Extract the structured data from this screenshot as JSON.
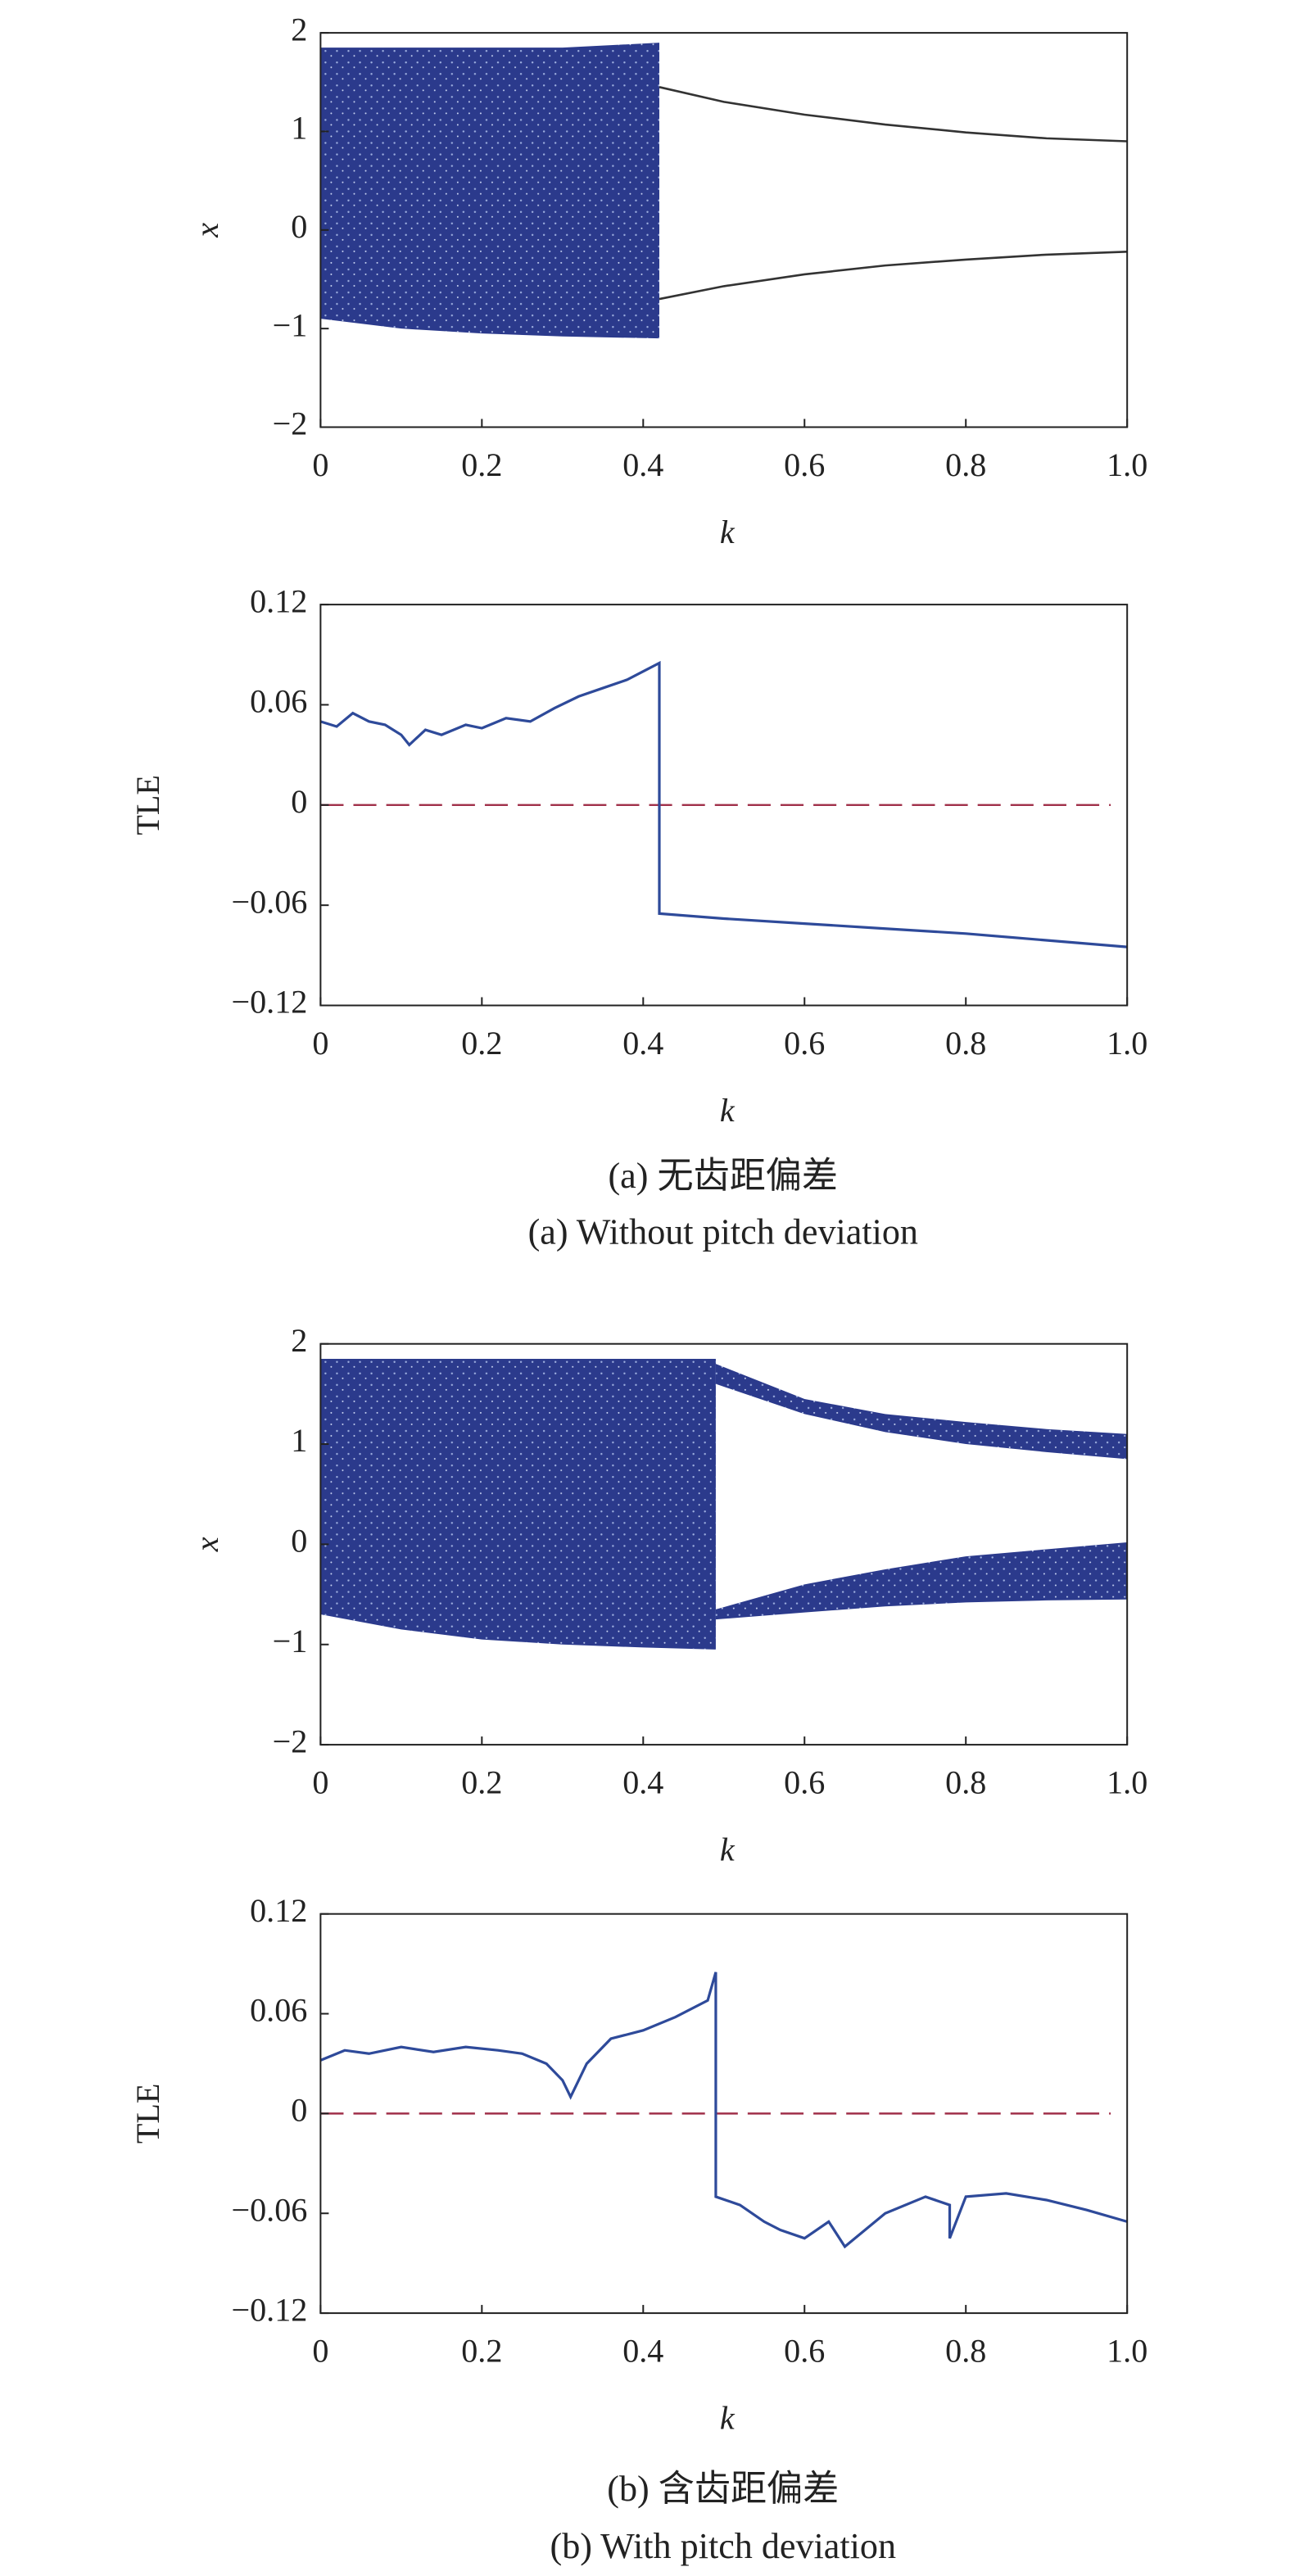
{
  "chart_data": [
    {
      "type": "bifurcation",
      "xlabel": "k",
      "ylabel": "x",
      "xlim": [
        0,
        1
      ],
      "ylim": [
        -2,
        2
      ],
      "xticks": [
        0,
        0.2,
        0.4,
        0.6,
        0.8,
        {
          "value": 1,
          "label": "1.0"
        }
      ],
      "yticks": [
        {
          "value": -2,
          "label": "−2"
        },
        {
          "value": -1,
          "label": "−1"
        },
        0,
        1,
        2
      ],
      "bands": [
        {
          "color": "#2b3a8c",
          "x": [
            0,
            0.1,
            0.2,
            0.3,
            0.42
          ],
          "upper": [
            1.85,
            1.85,
            1.85,
            1.85,
            1.9
          ],
          "lower": [
            -0.9,
            -1.0,
            -1.05,
            -1.08,
            -1.1
          ]
        }
      ],
      "branches": [
        {
          "color": "#333333",
          "x": [
            0.42,
            0.5,
            0.6,
            0.7,
            0.8,
            0.9,
            1
          ],
          "values": [
            1.45,
            1.3,
            1.17,
            1.07,
            0.99,
            0.93,
            0.9
          ]
        },
        {
          "color": "#333333",
          "x": [
            0.42,
            0.5,
            0.6,
            0.7,
            0.8,
            0.9,
            1
          ],
          "values": [
            -0.7,
            -0.57,
            -0.45,
            -0.36,
            -0.3,
            -0.25,
            -0.22
          ]
        }
      ]
    },
    {
      "type": "line",
      "xlabel": "k",
      "ylabel": "TLE",
      "xlim": [
        0,
        1
      ],
      "ylim": [
        -0.12,
        0.12
      ],
      "xticks": [
        0,
        0.2,
        0.4,
        0.6,
        0.8,
        {
          "value": 1,
          "label": "1.0"
        }
      ],
      "yticks": [
        {
          "value": -0.12,
          "label": "−0.12"
        },
        {
          "value": -0.06,
          "label": "−0.06"
        },
        0,
        0.06,
        0.12
      ],
      "ref_line": 0,
      "ref_color": "#a0304a",
      "series": [
        {
          "color": "#2e4a9a",
          "x": [
            0,
            0.02,
            0.04,
            0.06,
            0.08,
            0.1,
            0.11,
            0.13,
            0.15,
            0.18,
            0.2,
            0.23,
            0.26,
            0.29,
            0.32,
            0.35,
            0.38,
            0.4,
            0.42,
            0.42,
            0.5,
            0.6,
            0.7,
            0.8,
            0.9,
            1
          ],
          "values": [
            0.05,
            0.047,
            0.055,
            0.05,
            0.048,
            0.042,
            0.036,
            0.045,
            0.042,
            0.048,
            0.046,
            0.052,
            0.05,
            0.058,
            0.065,
            0.07,
            0.075,
            0.08,
            0.085,
            -0.065,
            -0.068,
            -0.071,
            -0.074,
            -0.077,
            -0.081,
            -0.085
          ]
        }
      ]
    },
    {
      "type": "bifurcation",
      "xlabel": "k",
      "ylabel": "x",
      "xlim": [
        0,
        1
      ],
      "ylim": [
        -2,
        2
      ],
      "xticks": [
        0,
        0.2,
        0.4,
        0.6,
        0.8,
        {
          "value": 1,
          "label": "1.0"
        }
      ],
      "yticks": [
        {
          "value": -2,
          "label": "−2"
        },
        {
          "value": -1,
          "label": "−1"
        },
        0,
        1,
        2
      ],
      "bands": [
        {
          "color": "#2b3a8c",
          "x": [
            0,
            0.1,
            0.2,
            0.3,
            0.4,
            0.49
          ],
          "upper": [
            1.85,
            1.85,
            1.85,
            1.85,
            1.85,
            1.85
          ],
          "lower": [
            -0.7,
            -0.85,
            -0.95,
            -1.0,
            -1.03,
            -1.05
          ]
        },
        {
          "color": "#2b3a8c",
          "x": [
            0.49,
            0.6,
            0.7,
            0.8,
            0.9,
            1
          ],
          "upper": [
            1.8,
            1.45,
            1.3,
            1.22,
            1.15,
            1.1
          ],
          "lower": [
            1.6,
            1.3,
            1.12,
            1.0,
            0.92,
            0.85
          ]
        },
        {
          "color": "#2b3a8c",
          "x": [
            0.49,
            0.6,
            0.7,
            0.8,
            0.9,
            1
          ],
          "upper": [
            -0.65,
            -0.4,
            -0.25,
            -0.12,
            -0.05,
            0.02
          ],
          "lower": [
            -0.75,
            -0.68,
            -0.62,
            -0.58,
            -0.56,
            -0.55
          ]
        }
      ],
      "branches": []
    },
    {
      "type": "line",
      "xlabel": "k",
      "ylabel": "TLE",
      "xlim": [
        0,
        1
      ],
      "ylim": [
        -0.12,
        0.12
      ],
      "xticks": [
        0,
        0.2,
        0.4,
        0.6,
        0.8,
        {
          "value": 1,
          "label": "1.0"
        }
      ],
      "yticks": [
        {
          "value": -0.12,
          "label": "−0.12"
        },
        {
          "value": -0.06,
          "label": "−0.06"
        },
        0,
        0.06,
        0.12
      ],
      "ref_line": 0,
      "ref_color": "#a0304a",
      "series": [
        {
          "color": "#2e4a9a",
          "x": [
            0,
            0.03,
            0.06,
            0.1,
            0.14,
            0.18,
            0.22,
            0.25,
            0.28,
            0.3,
            0.31,
            0.33,
            0.36,
            0.4,
            0.44,
            0.48,
            0.49,
            0.49,
            0.52,
            0.55,
            0.57,
            0.6,
            0.63,
            0.65,
            0.7,
            0.75,
            0.78,
            0.78,
            0.8,
            0.85,
            0.9,
            0.95,
            1
          ],
          "values": [
            0.032,
            0.038,
            0.036,
            0.04,
            0.037,
            0.04,
            0.038,
            0.036,
            0.03,
            0.02,
            0.01,
            0.03,
            0.045,
            0.05,
            0.058,
            0.068,
            0.085,
            -0.05,
            -0.055,
            -0.065,
            -0.07,
            -0.075,
            -0.065,
            -0.08,
            -0.06,
            -0.05,
            -0.055,
            -0.075,
            -0.05,
            -0.048,
            -0.052,
            -0.058,
            -0.065
          ]
        }
      ]
    }
  ],
  "captions": [
    "(a) 无齿距偏差",
    "(a) Without pitch deviation",
    "(b) 含齿距偏差",
    "(b) With pitch deviation"
  ]
}
